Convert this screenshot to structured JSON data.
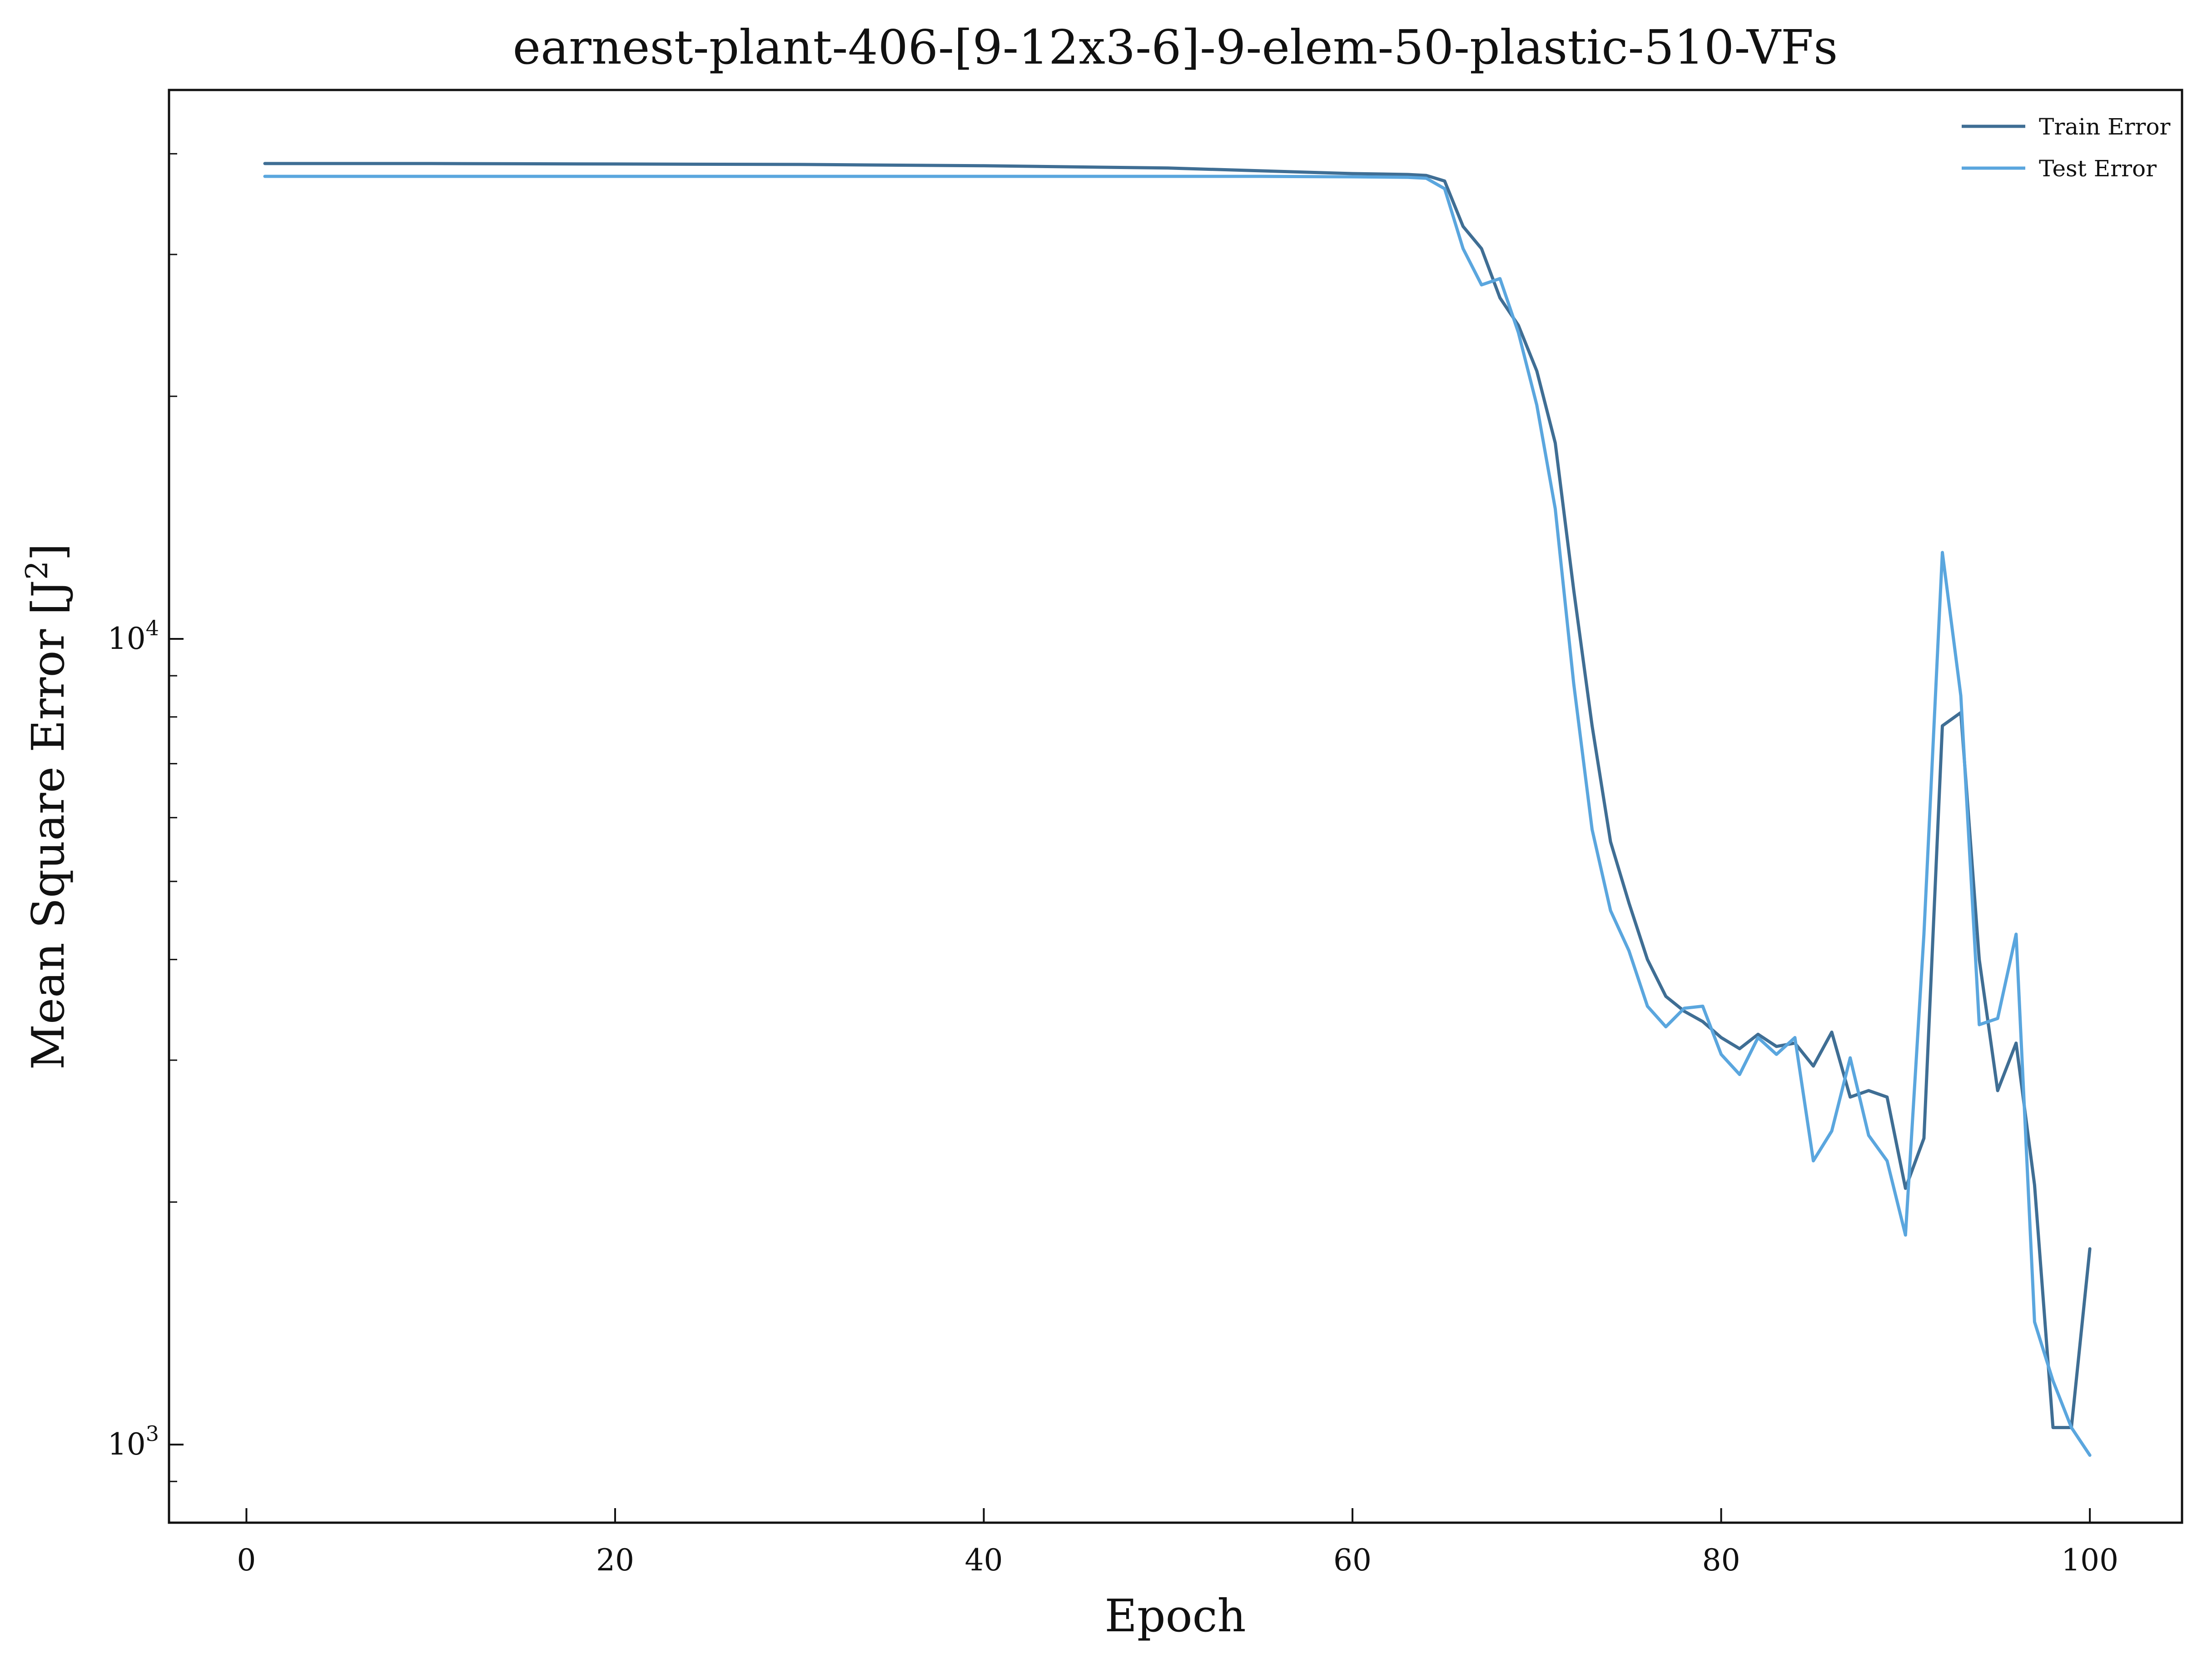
{
  "chart_data": {
    "type": "line",
    "title": "earnest-plant-406-[9-12x3-6]-9-elem-50-plastic-510-VFs",
    "xlabel": "Epoch",
    "ylabel": "Mean Square Error [J²]",
    "ylabel_parts": {
      "base": "Mean Square Error [J",
      "sup": "2",
      "tail": "]"
    },
    "x_ticks": [
      "0",
      "20",
      "40",
      "60",
      "80",
      "100"
    ],
    "x_tick_values": [
      0,
      20,
      40,
      60,
      80,
      100
    ],
    "y_ticks": [
      {
        "value": 1000,
        "base": "10",
        "exp": "3"
      },
      {
        "value": 10000,
        "base": "10",
        "exp": "4"
      }
    ],
    "y_scale": "log",
    "xlim": [
      -4.2,
      105
    ],
    "ylim": [
      800,
      48000
    ],
    "grid": false,
    "legend_position": "top-right",
    "series": [
      {
        "name": "Train Error",
        "color": "#3f6e94",
        "x": [
          1,
          10,
          20,
          30,
          40,
          50,
          55,
          60,
          63,
          64,
          65,
          66,
          67,
          68,
          69,
          70,
          71,
          72,
          73,
          74,
          75,
          76,
          77,
          78,
          79,
          80,
          81,
          82,
          83,
          84,
          85,
          86,
          87,
          88,
          89,
          90,
          91,
          92,
          93,
          94,
          95,
          96,
          97,
          98,
          99,
          100
        ],
        "y": [
          38900,
          38900,
          38850,
          38800,
          38650,
          38400,
          38100,
          37800,
          37700,
          37600,
          37000,
          32500,
          30500,
          26500,
          24500,
          21500,
          17500,
          11500,
          7800,
          5600,
          4700,
          4000,
          3600,
          3450,
          3350,
          3200,
          3100,
          3230,
          3120,
          3150,
          2950,
          3250,
          2700,
          2750,
          2700,
          2080,
          2400,
          7800,
          8100,
          4000,
          2750,
          3150,
          2100,
          1050,
          1050,
          1750
        ]
      },
      {
        "name": "Test Error",
        "color": "#5aa6de",
        "x": [
          1,
          10,
          20,
          30,
          40,
          50,
          55,
          60,
          63,
          64,
          65,
          66,
          67,
          68,
          69,
          70,
          71,
          72,
          73,
          74,
          75,
          76,
          77,
          78,
          79,
          80,
          81,
          82,
          83,
          84,
          85,
          86,
          87,
          88,
          89,
          90,
          91,
          92,
          93,
          94,
          95,
          96,
          97,
          98,
          99,
          100
        ],
        "y": [
          37500,
          37500,
          37500,
          37500,
          37500,
          37500,
          37500,
          37450,
          37400,
          37300,
          36200,
          30500,
          27500,
          28000,
          24000,
          19500,
          14500,
          8800,
          5800,
          4600,
          4100,
          3500,
          3300,
          3480,
          3500,
          3050,
          2880,
          3200,
          3050,
          3200,
          2250,
          2450,
          3020,
          2420,
          2250,
          1820,
          4300,
          12800,
          8500,
          3320,
          3380,
          4300,
          1420,
          1200,
          1050,
          970
        ]
      }
    ]
  }
}
